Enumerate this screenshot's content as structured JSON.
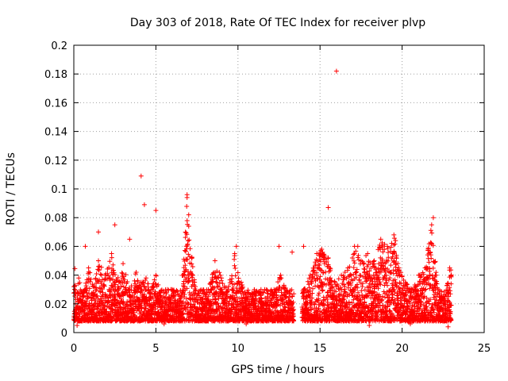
{
  "chart_data": {
    "type": "scatter",
    "title": "Day 303 of 2018, Rate Of TEC Index for receiver plvp",
    "xlabel": "GPS time / hours",
    "ylabel": "ROTI / TECUs",
    "xlim": [
      0,
      25
    ],
    "ylim": [
      0,
      0.2
    ],
    "grid": true,
    "marker": "+",
    "color": "#ff0000",
    "x_ticks": [
      "0",
      "5",
      "10",
      "15",
      "20",
      "25"
    ],
    "y_ticks": [
      "0",
      "0.02",
      "0.04",
      "0.06",
      "0.08",
      "0.1",
      "0.12",
      "0.14",
      "0.16",
      "0.18",
      "0.2"
    ],
    "x_tick_values": [
      0,
      5,
      10,
      15,
      20,
      25
    ],
    "y_tick_values": [
      0,
      0.02,
      0.04,
      0.06,
      0.08,
      0.1,
      0.12,
      0.14,
      0.16,
      0.18,
      0.2
    ],
    "data_gap_hours": [
      13.4,
      13.9
    ],
    "series": [
      {
        "name": "ROTI",
        "x": [
          0.1,
          0.3,
          0.6,
          0.9,
          1.2,
          1.5,
          1.9,
          2.3,
          2.6,
          3.0,
          3.4,
          3.8,
          4.1,
          4.4,
          4.7,
          5.0,
          5.3,
          5.7,
          6.1,
          6.5,
          6.9,
          7.0,
          7.4,
          7.8,
          8.2,
          8.6,
          9.0,
          9.4,
          9.8,
          10.2,
          10.6,
          11.0,
          11.4,
          11.8,
          12.2,
          12.6,
          13.0,
          13.3,
          14.0,
          14.4,
          14.8,
          15.1,
          15.5,
          15.9,
          16.3,
          16.7,
          17.1,
          17.5,
          17.9,
          18.3,
          18.7,
          19.1,
          19.5,
          19.8,
          20.2,
          20.6,
          21.0,
          21.4,
          21.8,
          22.2,
          22.6,
          22.9,
          4.1,
          4.3,
          5.0,
          6.9,
          7.0,
          15.5,
          16.0,
          2.5,
          1.5,
          0.7,
          3.4,
          9.9,
          12.5,
          17.3,
          19.6,
          21.9,
          13.3,
          14.0,
          0.2,
          5.5,
          8.0,
          10.5,
          18.0,
          20.5,
          22.8,
          6.0,
          11.5,
          15.0
        ],
        "y": [
          0.02,
          0.038,
          0.028,
          0.045,
          0.032,
          0.05,
          0.04,
          0.055,
          0.036,
          0.048,
          0.03,
          0.042,
          0.035,
          0.038,
          0.03,
          0.04,
          0.025,
          0.03,
          0.028,
          0.022,
          0.094,
          0.074,
          0.032,
          0.02,
          0.03,
          0.05,
          0.038,
          0.03,
          0.055,
          0.035,
          0.025,
          0.022,
          0.02,
          0.025,
          0.03,
          0.04,
          0.028,
          0.02,
          0.03,
          0.04,
          0.055,
          0.058,
          0.052,
          0.035,
          0.04,
          0.045,
          0.06,
          0.05,
          0.055,
          0.05,
          0.065,
          0.06,
          0.068,
          0.045,
          0.035,
          0.03,
          0.04,
          0.045,
          0.075,
          0.03,
          0.025,
          0.045,
          0.109,
          0.089,
          0.085,
          0.096,
          0.082,
          0.087,
          0.182,
          0.075,
          0.07,
          0.06,
          0.065,
          0.06,
          0.06,
          0.06,
          0.064,
          0.08,
          0.056,
          0.06,
          0.005,
          0.006,
          0.008,
          0.006,
          0.005,
          0.006,
          0.004,
          0.015,
          0.012,
          0.01
        ]
      }
    ]
  }
}
